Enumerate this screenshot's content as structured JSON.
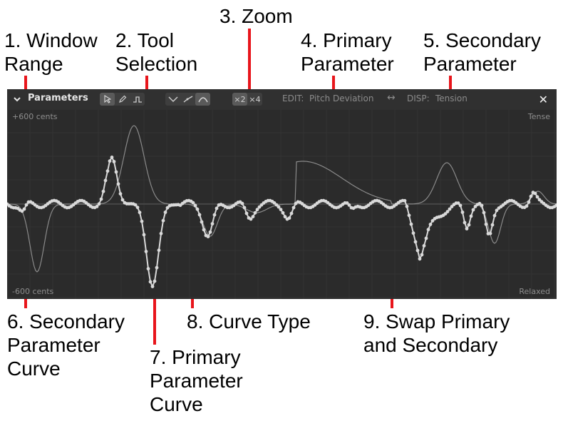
{
  "callouts": {
    "window_range": "1. Window\nRange",
    "tool_selection": "2. Tool\nSelection",
    "zoom": "3. Zoom",
    "primary_parameter": "4. Primary\nParameter",
    "secondary_parameter": "5. Secondary\nParameter",
    "secondary_curve": "6. Secondary\nParameter\nCurve",
    "primary_curve": "7. Primary\nParameter\nCurve",
    "curve_type": "8. Curve Type",
    "swap": "9. Swap Primary\nand Secondary"
  },
  "panel": {
    "title": "Parameters",
    "zoom_x2": "×2",
    "zoom_x4": "×4",
    "edit_label": "EDIT:",
    "edit_value": "Pitch Deviation",
    "swap_glyph": "↔",
    "disp_label": "DISP:",
    "disp_value": "Tension",
    "close_glyph": "✕",
    "range_top_left": "+600 cents",
    "range_bottom_left": "-600 cents",
    "range_top_right": "Tense",
    "range_bottom_right": "Relaxed"
  },
  "colors": {
    "panel_bg": "#2b2b2b",
    "primary_curve": "#d9d9d9",
    "secondary_curve": "#8a8a8a",
    "callout_line": "#e8151b"
  },
  "icons": {
    "collapse": "chevron-down-icon",
    "select_tool": "pointer-icon",
    "pencil_tool": "pencil-icon",
    "line_tool": "line-tool-icon",
    "curve_sharp": "curve-sharp-icon",
    "curve_linear": "curve-linear-icon",
    "curve_smooth": "curve-smooth-icon",
    "swap": "swap-arrows-icon",
    "close": "close-icon"
  }
}
